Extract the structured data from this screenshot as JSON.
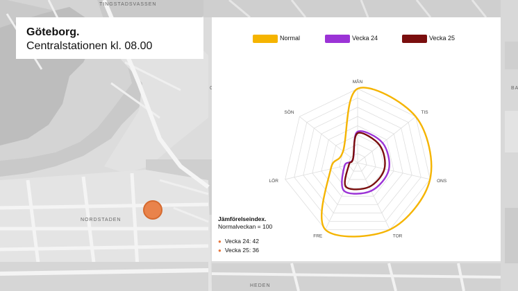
{
  "map": {
    "labels": [
      "TINGSTADSVASSEN",
      "NORDSTADEN",
      "HEDEN",
      "G",
      "BA"
    ],
    "station_marker_color": "#e9834b"
  },
  "title_card": {
    "city": "Göteborg.",
    "subtitle": "Centralstationen  kl. 08.00"
  },
  "chart_data": {
    "type": "radar",
    "axes": [
      "MÅN",
      "TIS",
      "ONS",
      "TOR",
      "FRE",
      "LÖR",
      "SÖN"
    ],
    "rmax": 100,
    "grid": true,
    "legend_position": "top",
    "series": [
      {
        "name": "Normal",
        "color": "#f5b400",
        "values": [
          100,
          100,
          100,
          100,
          100,
          37,
          25
        ]
      },
      {
        "name": "Vecka 24",
        "color": "#9b33d6",
        "values": [
          42,
          43,
          43,
          42,
          42,
          18,
          8
        ]
      },
      {
        "name": "Vecka 25",
        "color": "#7a0e0e",
        "values": [
          40,
          38,
          37,
          36,
          36,
          12,
          8
        ]
      }
    ]
  },
  "info": {
    "title": "Jämförelseindex.",
    "subtitle": "Normalveckan = 100",
    "items": [
      "Vecka 24: 42",
      "Vecka 25: 36"
    ]
  }
}
